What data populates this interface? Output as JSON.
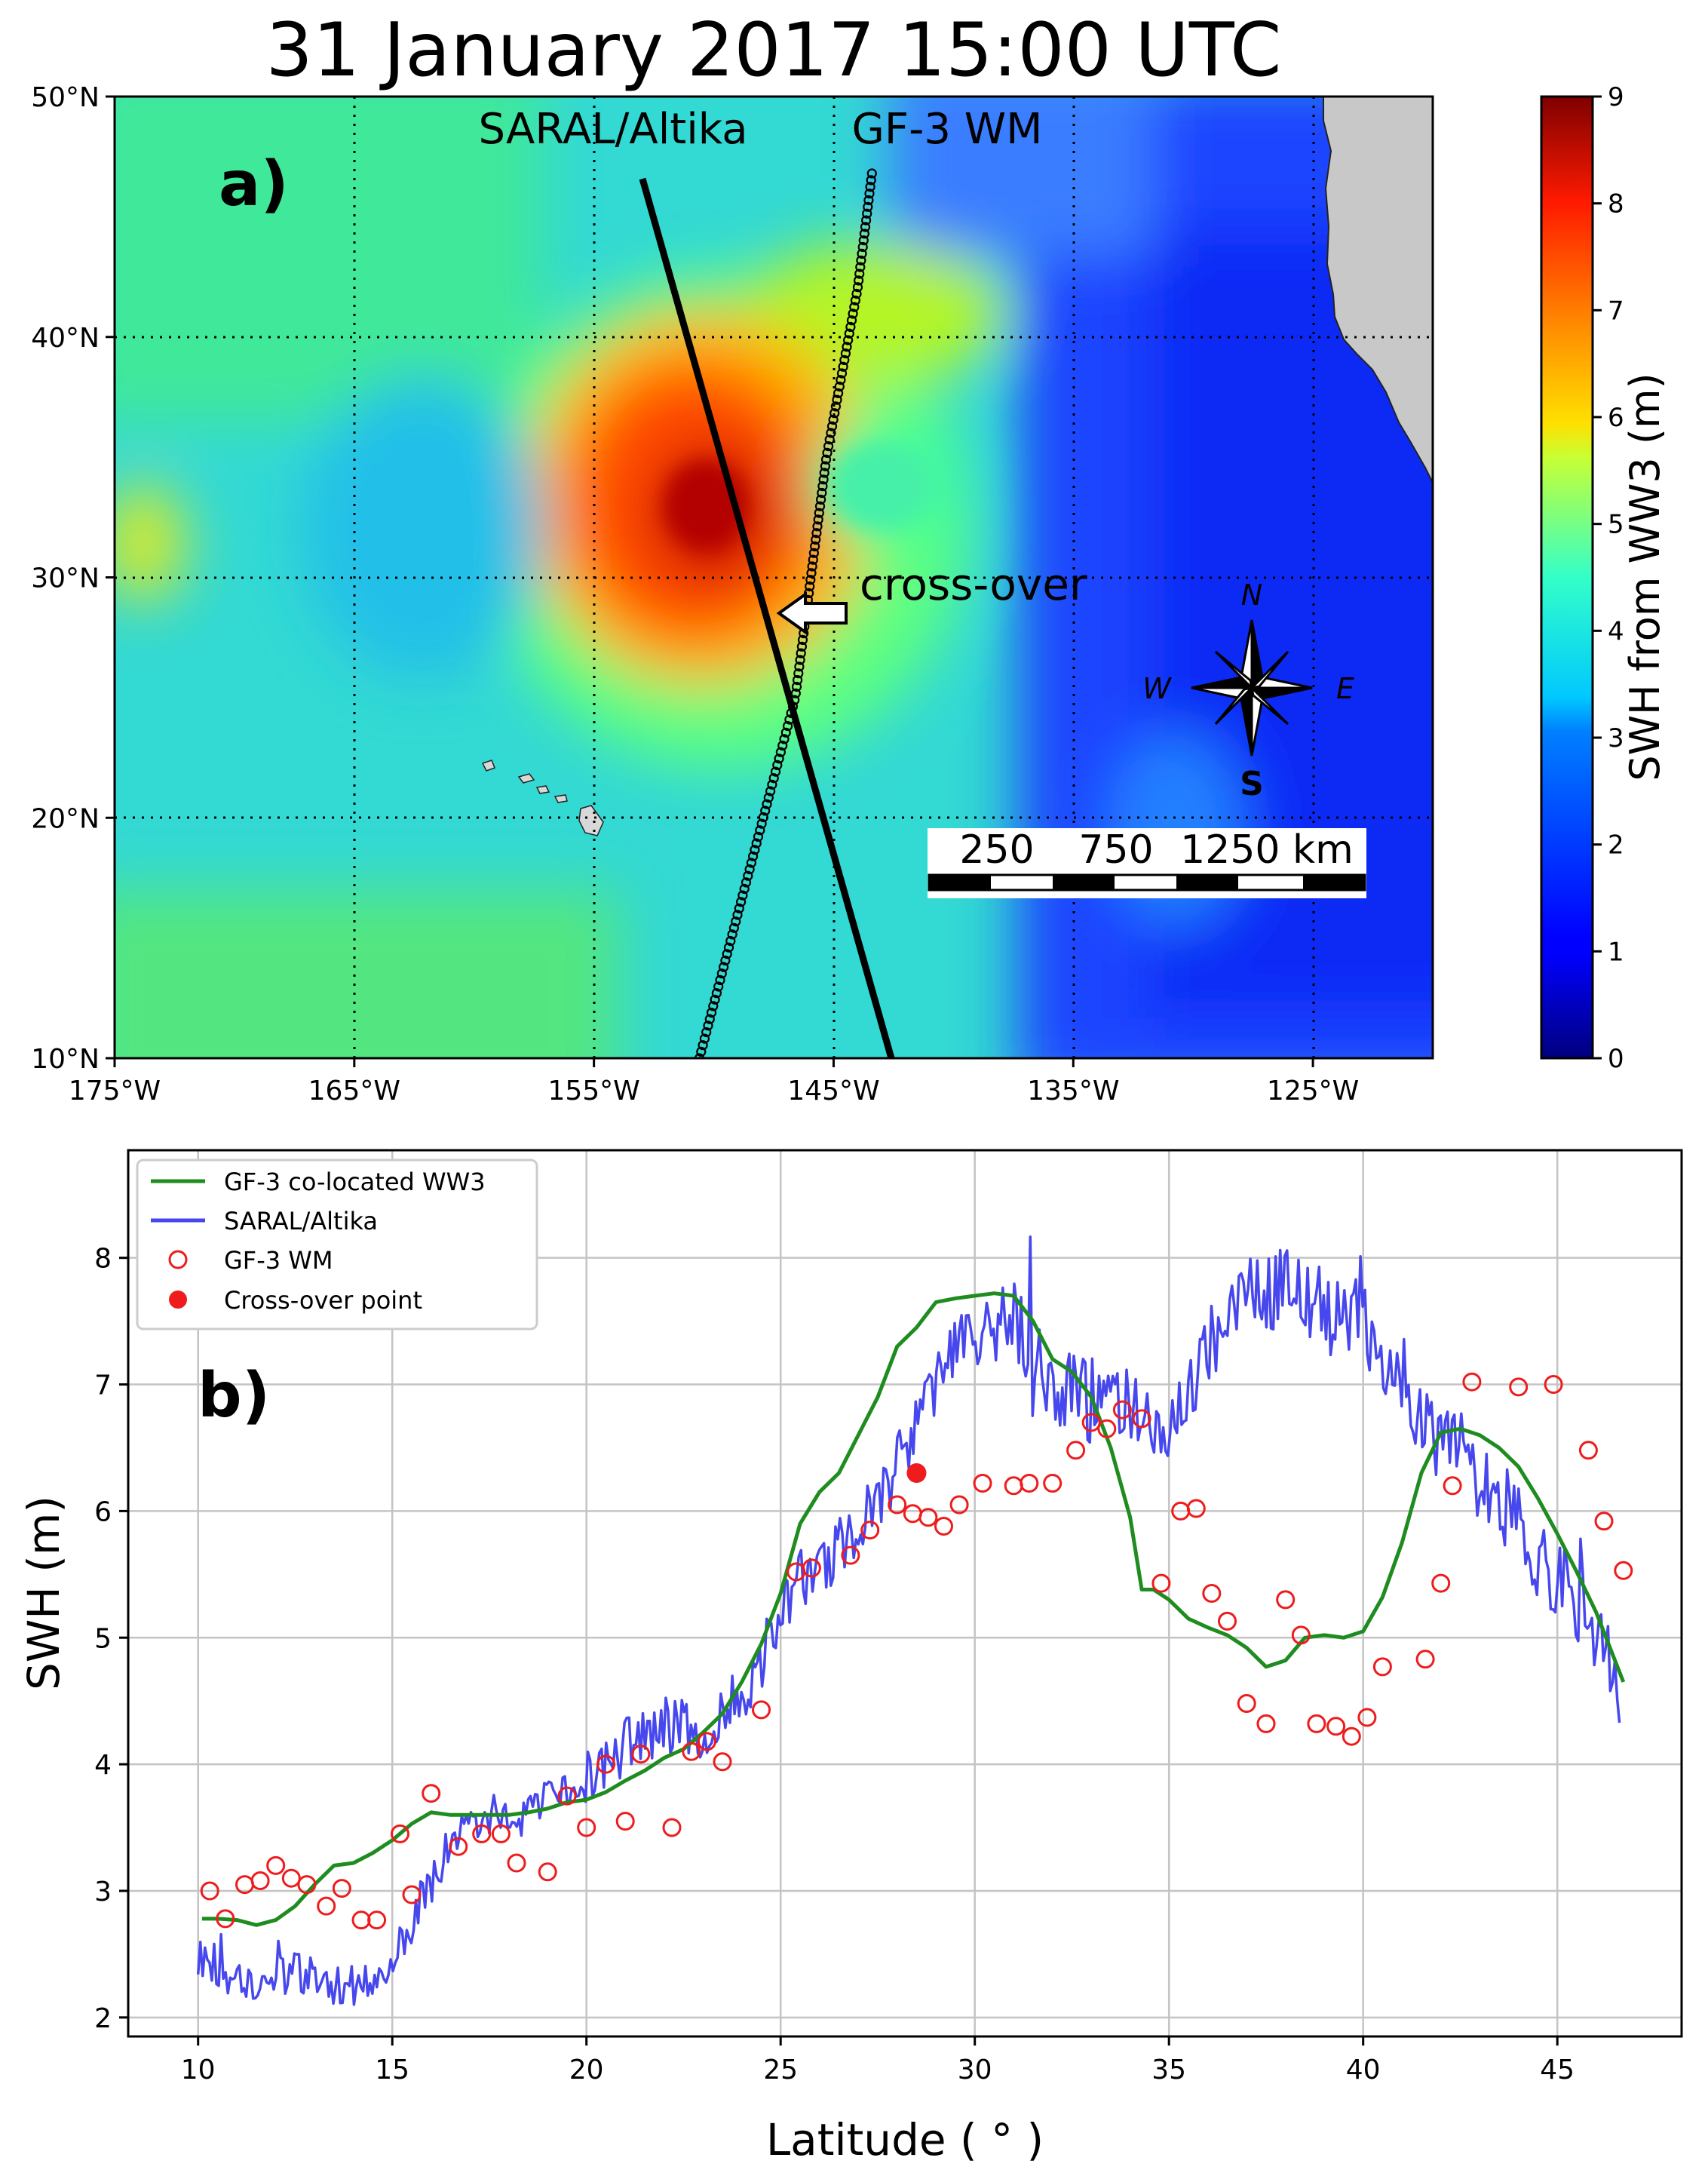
{
  "chart_data": [
    {
      "type": "heatmap",
      "panel_label": "a)",
      "title": "31 January 2017 15:00 UTC",
      "field": "SWH from WW3 (m)",
      "lon_range": [
        -175,
        -120
      ],
      "lat_range": [
        10,
        50
      ],
      "x_ticks": [
        "175°W",
        "165°W",
        "155°W",
        "145°W",
        "135°W",
        "125°W"
      ],
      "x_tick_values": [
        -175,
        -165,
        -155,
        -145,
        -135,
        -125
      ],
      "y_ticks": [
        "10°N",
        "20°N",
        "30°N",
        "40°N",
        "50°N"
      ],
      "y_tick_values": [
        10,
        20,
        30,
        40,
        50
      ],
      "colorbar": {
        "label": "SWH from WW3 (m)",
        "min": 0,
        "max": 9,
        "ticks": [
          "0",
          "1",
          "2",
          "3",
          "4",
          "5",
          "6",
          "7",
          "8",
          "9"
        ]
      },
      "gf3_track_label": "GF-3 WM",
      "saral_track_label": "SARAL/Altika",
      "saral_track": [
        [
          -152.7,
          46.8
        ],
        [
          -142.3,
          10
        ]
      ],
      "gf3_track": [
        [
          -150.6,
          10
        ],
        [
          -146.6,
          25
        ],
        [
          -145.3,
          35
        ],
        [
          -144.0,
          42
        ],
        [
          -143.4,
          46.8
        ]
      ],
      "crossover": {
        "label": "cross-over",
        "lon": -147.5,
        "lat": 28.6
      },
      "compass": {
        "N": "N",
        "S": "S",
        "E": "E",
        "W": "W"
      },
      "scale_bar": {
        "labels": [
          "250",
          "750",
          "1250 km"
        ]
      },
      "storm_center": {
        "lon": -150,
        "lat": 32.5,
        "peak_swh": 8.5
      }
    },
    {
      "type": "line",
      "panel_label": "b)",
      "title": "",
      "xlabel": "Latitude ( ° )",
      "ylabel": "SWH (m)",
      "xlim": [
        8.2,
        48.2
      ],
      "ylim": [
        1.85,
        8.85
      ],
      "x_ticks": [
        10,
        15,
        20,
        25,
        30,
        35,
        40,
        45
      ],
      "y_ticks": [
        2,
        3,
        4,
        5,
        6,
        7,
        8
      ],
      "grid": true,
      "legend_position": "top-left",
      "legend": [
        "GF-3 co-located WW3",
        "SARAL/Altika",
        "GF-3 WM",
        "Cross-over point"
      ],
      "colors": {
        "ww3": "#1f8c1f",
        "saral": "#4747ee",
        "gf3": "#ee1c1c",
        "crossover": "#ee1c1c"
      },
      "series": [
        {
          "name": "GF-3 co-located WW3",
          "style": "line",
          "x": [
            10.1,
            10.5,
            11.0,
            11.5,
            12.0,
            12.5,
            13.0,
            13.5,
            14.0,
            14.5,
            15.0,
            15.5,
            16.0,
            16.5,
            17.0,
            17.5,
            18.0,
            18.5,
            19.0,
            19.5,
            20.0,
            20.5,
            21.0,
            21.5,
            22.0,
            22.5,
            23.0,
            23.5,
            24.0,
            24.5,
            25.0,
            25.5,
            26.0,
            26.5,
            27.0,
            27.5,
            28.0,
            28.5,
            29.0,
            29.5,
            30.0,
            30.5,
            31.0,
            31.5,
            32.0,
            32.5,
            33.0,
            33.5,
            34.0,
            34.3,
            34.6,
            35.0,
            35.5,
            36.0,
            36.5,
            37.0,
            37.5,
            38.0,
            38.5,
            39.0,
            39.5,
            40.0,
            40.5,
            41.0,
            41.5,
            42.0,
            42.5,
            43.0,
            43.5,
            44.0,
            44.5,
            45.0,
            45.5,
            46.0,
            46.7
          ],
          "y": [
            2.78,
            2.78,
            2.77,
            2.73,
            2.77,
            2.88,
            3.05,
            3.2,
            3.22,
            3.3,
            3.4,
            3.53,
            3.62,
            3.6,
            3.6,
            3.6,
            3.6,
            3.62,
            3.65,
            3.7,
            3.72,
            3.78,
            3.87,
            3.95,
            4.05,
            4.12,
            4.25,
            4.4,
            4.65,
            4.95,
            5.35,
            5.9,
            6.15,
            6.3,
            6.6,
            6.9,
            7.3,
            7.45,
            7.65,
            7.68,
            7.7,
            7.72,
            7.7,
            7.5,
            7.2,
            7.1,
            6.9,
            6.5,
            5.95,
            5.38,
            5.38,
            5.3,
            5.15,
            5.08,
            5.02,
            4.92,
            4.77,
            4.82,
            5.0,
            5.02,
            5.0,
            5.05,
            5.32,
            5.75,
            6.3,
            6.62,
            6.65,
            6.6,
            6.5,
            6.35,
            6.1,
            5.82,
            5.52,
            5.2,
            4.65
          ]
        },
        {
          "name": "SARAL/Altika",
          "style": "noisy-line",
          "x": [
            10.0,
            10.2,
            10.6,
            11.0,
            11.5,
            12.0,
            12.5,
            13.0,
            13.5,
            14.0,
            14.5,
            15.0,
            15.5,
            16.0,
            16.5,
            17.0,
            17.5,
            18.0,
            18.5,
            19.0,
            19.5,
            20.0,
            20.5,
            21.0,
            21.5,
            22.0,
            22.5,
            23.0,
            23.5,
            24.0,
            24.5,
            25.0,
            25.5,
            26.0,
            26.5,
            27.0,
            27.5,
            28.0,
            28.5,
            29.0,
            29.5,
            30.0,
            30.5,
            31.0,
            31.5,
            32.0,
            32.5,
            33.0,
            33.5,
            34.0,
            34.5,
            35.0,
            35.5,
            36.0,
            36.5,
            37.0,
            37.5,
            38.0,
            38.5,
            39.0,
            39.5,
            40.0,
            40.5,
            41.0,
            41.5,
            42.0,
            42.5,
            43.0,
            43.5,
            44.0,
            44.5,
            45.0,
            45.5,
            46.0,
            46.6
          ],
          "y": [
            2.5,
            2.45,
            2.35,
            2.3,
            2.3,
            2.3,
            2.35,
            2.35,
            2.25,
            2.25,
            2.3,
            2.45,
            2.75,
            3.05,
            3.4,
            3.55,
            3.6,
            3.6,
            3.65,
            3.7,
            3.75,
            3.85,
            3.95,
            4.2,
            4.25,
            4.3,
            4.35,
            4.25,
            4.35,
            4.55,
            4.8,
            5.2,
            5.45,
            5.5,
            5.7,
            5.9,
            6.1,
            6.35,
            6.7,
            7.0,
            7.25,
            7.25,
            7.5,
            7.55,
            7.2,
            7.0,
            6.95,
            6.85,
            6.75,
            6.85,
            6.8,
            6.6,
            6.85,
            7.25,
            7.55,
            7.75,
            7.65,
            7.9,
            7.65,
            7.6,
            7.65,
            7.45,
            7.2,
            7.05,
            6.75,
            6.5,
            6.6,
            6.2,
            6.1,
            5.9,
            5.55,
            5.5,
            5.3,
            5.0,
            4.6
          ],
          "noise_amplitude": 0.2
        },
        {
          "name": "GF-3 WM",
          "style": "hollow-markers",
          "x": [
            10.3,
            10.7,
            11.2,
            11.6,
            12.0,
            12.4,
            12.8,
            13.3,
            13.7,
            14.2,
            14.6,
            15.2,
            15.5,
            16.0,
            16.7,
            17.3,
            17.8,
            18.2,
            19.0,
            19.5,
            20.0,
            20.5,
            21.0,
            21.4,
            22.2,
            22.7,
            23.1,
            23.5,
            24.5,
            25.4,
            25.8,
            26.8,
            27.3,
            28.0,
            28.4,
            28.8,
            29.2,
            29.6,
            30.2,
            31.0,
            31.4,
            32.0,
            32.6,
            33.0,
            33.4,
            33.8,
            34.3,
            34.8,
            35.3,
            35.7,
            36.1,
            36.5,
            37.0,
            37.5,
            38.0,
            38.4,
            38.8,
            39.3,
            39.7,
            40.1,
            40.5,
            41.6,
            42.0,
            42.3,
            42.8,
            44.0,
            44.9,
            45.8,
            46.2,
            46.7
          ],
          "y": [
            3.0,
            2.78,
            3.05,
            3.08,
            3.2,
            3.1,
            3.05,
            2.88,
            3.02,
            2.77,
            2.77,
            3.45,
            2.97,
            3.77,
            3.35,
            3.45,
            3.45,
            3.22,
            3.15,
            3.75,
            3.5,
            4.0,
            3.55,
            4.08,
            3.5,
            4.1,
            4.18,
            4.02,
            4.43,
            5.52,
            5.55,
            5.65,
            5.85,
            6.05,
            5.98,
            5.95,
            5.88,
            6.05,
            6.22,
            6.2,
            6.22,
            6.22,
            6.48,
            6.7,
            6.65,
            6.8,
            6.73,
            5.43,
            6.0,
            6.02,
            5.35,
            5.13,
            4.48,
            4.32,
            5.3,
            5.02,
            4.32,
            4.3,
            4.22,
            4.37,
            4.77,
            4.83,
            5.43,
            6.2,
            7.02,
            6.98,
            7.0,
            6.48,
            5.92,
            5.53
          ]
        },
        {
          "name": "Cross-over point",
          "style": "filled-marker",
          "x": [
            28.5
          ],
          "y": [
            6.3
          ]
        }
      ]
    }
  ]
}
